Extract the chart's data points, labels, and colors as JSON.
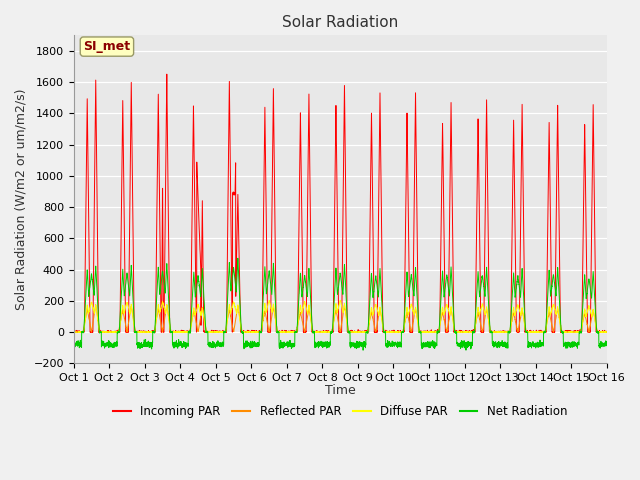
{
  "title": "Solar Radiation",
  "ylabel": "Solar Radiation (W/m2 or um/m2/s)",
  "xlabel": "Time",
  "ylim": [
    -200,
    1900
  ],
  "yticks": [
    -200,
    0,
    200,
    400,
    600,
    800,
    1000,
    1200,
    1400,
    1600,
    1800
  ],
  "x_tick_labels": [
    "Oct 1",
    "Oct 2",
    "Oct 3",
    "Oct 4",
    "Oct 5",
    "Oct 6",
    "Oct 7",
    "Oct 8",
    "Oct 9",
    "Oct 10",
    "Oct 11",
    "Oct 12",
    "Oct 13",
    "Oct 14",
    "Oct 15",
    "Oct 16"
  ],
  "annotation_text": "SI_met",
  "annotation_color": "#8B0000",
  "annotation_bg": "#FFFFC0",
  "plot_bg_color": "#E8E8E8",
  "fig_bg_color": "#F0F0F0",
  "colors": {
    "incoming": "#FF0000",
    "reflected": "#FF8C00",
    "diffuse": "#FFFF00",
    "net": "#00CC00"
  },
  "legend_labels": [
    "Incoming PAR",
    "Reflected PAR",
    "Diffuse PAR",
    "Net Radiation"
  ],
  "n_days": 15,
  "incoming_peaks": [
    1620,
    1610,
    1650,
    1540,
    1610,
    1560,
    1530,
    1580,
    1530,
    1530,
    1470,
    1490,
    1470,
    1460,
    1450
  ],
  "net_peaks": [
    470,
    470,
    490,
    450,
    520,
    490,
    455,
    480,
    450,
    460,
    460,
    460,
    450,
    465,
    430
  ],
  "reflected_peaks": [
    175,
    170,
    175,
    160,
    170,
    160,
    150,
    170,
    150,
    150,
    150,
    150,
    145,
    150,
    140
  ],
  "diffuse_peaks": [
    195,
    195,
    195,
    175,
    195,
    205,
    195,
    205,
    180,
    180,
    180,
    180,
    175,
    180,
    165
  ],
  "net_night": -80,
  "day4_disrupted": true,
  "day5_disrupted": true,
  "title_fontsize": 11,
  "label_fontsize": 9,
  "tick_fontsize": 8,
  "linewidth": 0.7
}
